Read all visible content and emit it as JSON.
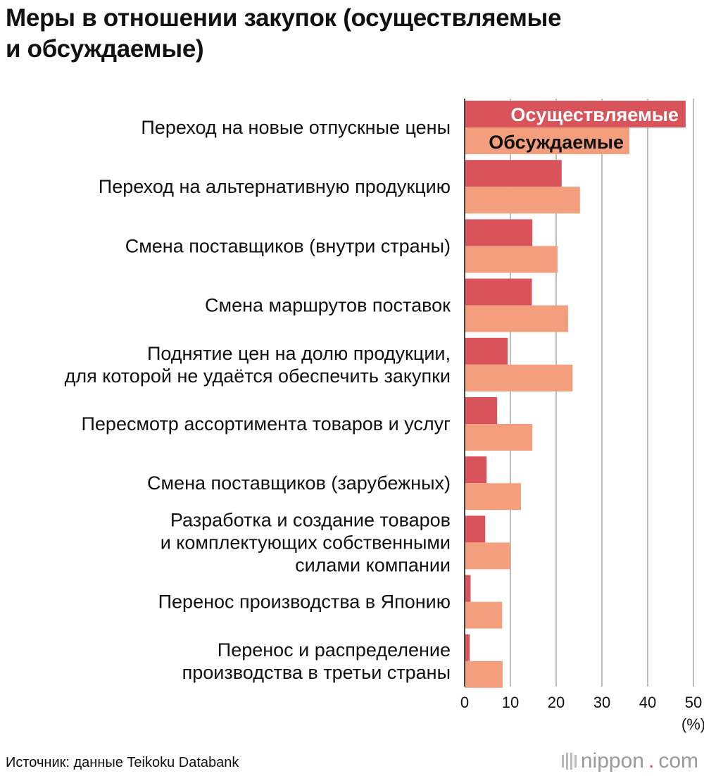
{
  "title_lines": [
    "Меры в отношении закупок (осуществляемые",
    "и обсуждаемые)"
  ],
  "source": "Источник: данные Teikoku Databank",
  "brand": {
    "name": "nippon",
    "dot": ".",
    "tld": "com"
  },
  "colors": {
    "implemented": "#d9535a",
    "discussed": "#f39e7c",
    "grid": "#bdbdbd",
    "axis": "#444444"
  },
  "chart_data": {
    "type": "bar",
    "orientation": "horizontal",
    "unit": "(%)",
    "xlim": [
      0,
      50
    ],
    "xticks": [
      0,
      10,
      20,
      30,
      40,
      50
    ],
    "grid": true,
    "legend_placement": "inside-top",
    "categories": [
      [
        "Переход на новые отпускные цены"
      ],
      [
        "Переход на альтернативную продукцию"
      ],
      [
        "Смена поставщиков (внутри страны)"
      ],
      [
        "Смена маршрутов поставок"
      ],
      [
        "Поднятие цен на долю продукции,",
        "для которой не удаётся обеспечить закупки"
      ],
      [
        "Пересмотр ассортимента товаров и услуг"
      ],
      [
        "Смена поставщиков (зарубежных)"
      ],
      [
        "Разработка и создание товаров",
        "и комплектующих собственными",
        "силами компании"
      ],
      [
        "Перенос производства в Японию"
      ],
      [
        "Перенос и распределение",
        "производства в третьи страны"
      ]
    ],
    "series": [
      {
        "name": "Осуществляемые",
        "values": [
          48.3,
          21.2,
          14.8,
          14.7,
          9.4,
          7.1,
          4.8,
          4.5,
          1.3,
          1.1
        ]
      },
      {
        "name": "Обсуждаемые",
        "values": [
          36.0,
          25.2,
          20.3,
          22.6,
          23.6,
          14.8,
          12.3,
          10.0,
          8.2,
          8.3
        ]
      }
    ]
  }
}
